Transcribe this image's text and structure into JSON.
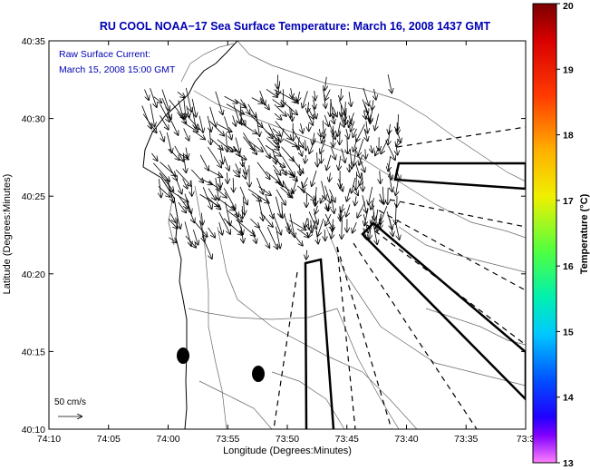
{
  "title": "RU COOL  NOAA−17  Sea Surface Temperature:  March 16, 2008 1437 GMT",
  "annotation": {
    "line1": "Raw Surface Current:",
    "line2": "March 15, 2008 15:00 GMT",
    "color": "#0000b4"
  },
  "axes": {
    "xlabel": "Longitude (Degrees:Minutes)",
    "ylabel": "Latitude (Degrees:Minutes)",
    "xticks": [
      "74:10",
      "74:05",
      "74:00",
      "73:55",
      "73:50",
      "73:45",
      "73:40",
      "73:35",
      "73:3"
    ],
    "yticks": [
      "40:35",
      "40:30",
      "40:25",
      "40:20",
      "40:15",
      "40:10"
    ]
  },
  "scale": {
    "label": "50 cm/s"
  },
  "colorbar": {
    "label": "Temperature (°C)",
    "ticks": [
      "20",
      "19",
      "18",
      "17",
      "16",
      "15",
      "14",
      "13"
    ]
  }
}
